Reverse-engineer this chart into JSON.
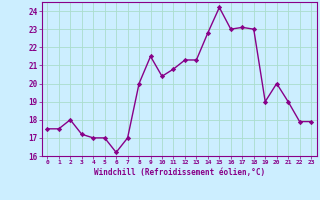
{
  "x": [
    0,
    1,
    2,
    3,
    4,
    5,
    6,
    7,
    8,
    9,
    10,
    11,
    12,
    13,
    14,
    15,
    16,
    17,
    18,
    19,
    20,
    21,
    22,
    23
  ],
  "y": [
    17.5,
    17.5,
    18.0,
    17.2,
    17.0,
    17.0,
    16.2,
    17.0,
    20.0,
    21.5,
    20.4,
    20.8,
    21.3,
    21.3,
    22.8,
    24.2,
    23.0,
    23.1,
    23.0,
    19.0,
    20.0,
    19.0,
    17.9,
    17.9
  ],
  "line_color": "#880088",
  "marker": "D",
  "marker_size": 2.2,
  "linewidth": 1.0,
  "bg_color": "#cceeff",
  "grid_color": "#aaddcc",
  "tick_color": "#880088",
  "label_color": "#880088",
  "xlabel": "Windchill (Refroidissement éolien,°C)",
  "ylim": [
    16,
    24.5
  ],
  "yticks": [
    16,
    17,
    18,
    19,
    20,
    21,
    22,
    23,
    24
  ],
  "xticks": [
    0,
    1,
    2,
    3,
    4,
    5,
    6,
    7,
    8,
    9,
    10,
    11,
    12,
    13,
    14,
    15,
    16,
    17,
    18,
    19,
    20,
    21,
    22,
    23
  ],
  "xlim": [
    -0.5,
    23.5
  ]
}
